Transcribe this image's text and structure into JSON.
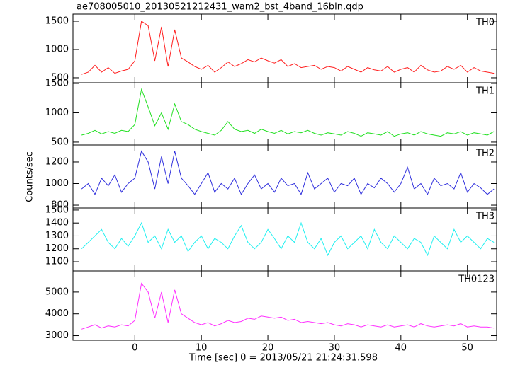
{
  "title": "ae708005010_20130521212431_wam2_bst_4band_16bin.qdp",
  "y_label": "Counts/sec",
  "x_label": "Time [sec] 0 = 2013/05/21 21:24:31.598",
  "chart_data": [
    {
      "type": "line",
      "xlim": [
        -9.3,
        54.4
      ],
      "xticks": [
        0,
        10,
        20,
        30,
        40,
        50
      ],
      "ylim": [
        412,
        1625
      ],
      "yticks": [
        500,
        1000,
        1500
      ],
      "x": [
        -8,
        -7,
        -6,
        -5,
        -4,
        -3,
        -2,
        -1,
        0,
        1,
        2,
        3,
        4,
        5,
        6,
        7,
        8,
        9,
        10,
        11,
        12,
        13,
        14,
        15,
        16,
        17,
        18,
        19,
        20,
        21,
        22,
        23,
        24,
        25,
        26,
        27,
        28,
        29,
        30,
        31,
        32,
        33,
        34,
        35,
        36,
        37,
        38,
        39,
        40,
        41,
        42,
        43,
        44,
        45,
        46,
        47,
        48,
        49,
        50,
        51,
        52,
        53,
        54
      ],
      "series": [
        {
          "name": "TH0",
          "color": "#ff2020",
          "values": [
            560,
            600,
            720,
            600,
            680,
            580,
            620,
            650,
            800,
            1500,
            1420,
            800,
            1400,
            700,
            1350,
            850,
            780,
            700,
            650,
            720,
            600,
            680,
            780,
            700,
            750,
            820,
            780,
            850,
            800,
            760,
            820,
            700,
            750,
            680,
            700,
            720,
            650,
            700,
            680,
            620,
            700,
            650,
            600,
            680,
            640,
            620,
            700,
            600,
            650,
            680,
            600,
            720,
            640,
            600,
            620,
            700,
            650,
            720,
            600,
            680,
            620,
            600,
            580
          ]
        }
      ]
    },
    {
      "type": "line",
      "xlim": [
        -9.3,
        54.4
      ],
      "xticks": [
        0,
        10,
        20,
        30,
        40,
        50
      ],
      "ylim": [
        451,
        1512
      ],
      "yticks": [
        500,
        1000,
        1500
      ],
      "x": [
        -8,
        -7,
        -6,
        -5,
        -4,
        -3,
        -2,
        -1,
        0,
        1,
        2,
        3,
        4,
        5,
        6,
        7,
        8,
        9,
        10,
        11,
        12,
        13,
        14,
        15,
        16,
        17,
        18,
        19,
        20,
        21,
        22,
        23,
        24,
        25,
        26,
        27,
        28,
        29,
        30,
        31,
        32,
        33,
        34,
        35,
        36,
        37,
        38,
        39,
        40,
        41,
        42,
        43,
        44,
        45,
        46,
        47,
        48,
        49,
        50,
        51,
        52,
        53,
        54
      ],
      "series": [
        {
          "name": "TH1",
          "color": "#22e022",
          "values": [
            620,
            650,
            700,
            640,
            680,
            650,
            700,
            680,
            800,
            1400,
            1100,
            780,
            1000,
            720,
            1150,
            850,
            800,
            720,
            680,
            650,
            620,
            700,
            850,
            720,
            680,
            700,
            650,
            720,
            680,
            650,
            700,
            640,
            680,
            660,
            700,
            650,
            620,
            660,
            640,
            620,
            680,
            650,
            600,
            660,
            640,
            620,
            680,
            600,
            640,
            660,
            620,
            680,
            640,
            620,
            600,
            660,
            640,
            680,
            620,
            660,
            640,
            620,
            680
          ]
        }
      ]
    },
    {
      "type": "line",
      "xlim": [
        -9.3,
        54.4
      ],
      "xticks": [
        0,
        10,
        20,
        30,
        40,
        50
      ],
      "ylim": [
        774,
        1357
      ],
      "yticks": [
        800,
        1000,
        1200
      ],
      "x": [
        -8,
        -7,
        -6,
        -5,
        -4,
        -3,
        -2,
        -1,
        0,
        1,
        2,
        3,
        4,
        5,
        6,
        7,
        8,
        9,
        10,
        11,
        12,
        13,
        14,
        15,
        16,
        17,
        18,
        19,
        20,
        21,
        22,
        23,
        24,
        25,
        26,
        27,
        28,
        29,
        30,
        31,
        32,
        33,
        34,
        35,
        36,
        37,
        38,
        39,
        40,
        41,
        42,
        43,
        44,
        45,
        46,
        47,
        48,
        49,
        50,
        51,
        52,
        53,
        54
      ],
      "series": [
        {
          "name": "TH2",
          "color": "#3030dd",
          "values": [
            950,
            1000,
            900,
            1050,
            980,
            1080,
            920,
            1000,
            1050,
            1300,
            1200,
            950,
            1250,
            1000,
            1300,
            1050,
            980,
            900,
            1000,
            1100,
            920,
            1000,
            950,
            1050,
            900,
            1000,
            1080,
            950,
            1000,
            920,
            1050,
            980,
            1000,
            900,
            1100,
            950,
            1000,
            1050,
            920,
            1000,
            980,
            1050,
            900,
            1000,
            960,
            1050,
            1000,
            920,
            1000,
            1150,
            950,
            1000,
            900,
            1050,
            980,
            1000,
            950,
            1100,
            920,
            1000,
            960,
            900,
            950
          ]
        }
      ]
    },
    {
      "type": "line",
      "xlim": [
        -9.3,
        54.4
      ],
      "xticks": [
        0,
        10,
        20,
        30,
        40,
        50
      ],
      "ylim": [
        1029,
        1516
      ],
      "yticks": [
        1100,
        1200,
        1300,
        1400,
        1500
      ],
      "x": [
        -8,
        -7,
        -6,
        -5,
        -4,
        -3,
        -2,
        -1,
        0,
        1,
        2,
        3,
        4,
        5,
        6,
        7,
        8,
        9,
        10,
        11,
        12,
        13,
        14,
        15,
        16,
        17,
        18,
        19,
        20,
        21,
        22,
        23,
        24,
        25,
        26,
        27,
        28,
        29,
        30,
        31,
        32,
        33,
        34,
        35,
        36,
        37,
        38,
        39,
        40,
        41,
        42,
        43,
        44,
        45,
        46,
        47,
        48,
        49,
        50,
        51,
        52,
        53,
        54
      ],
      "series": [
        {
          "name": "TH3",
          "color": "#20f0f0",
          "values": [
            1200,
            1250,
            1300,
            1350,
            1250,
            1200,
            1280,
            1220,
            1300,
            1400,
            1250,
            1300,
            1200,
            1350,
            1250,
            1300,
            1180,
            1250,
            1300,
            1200,
            1280,
            1250,
            1200,
            1300,
            1380,
            1250,
            1200,
            1250,
            1350,
            1280,
            1200,
            1300,
            1250,
            1400,
            1250,
            1200,
            1280,
            1150,
            1250,
            1300,
            1200,
            1250,
            1300,
            1200,
            1350,
            1250,
            1200,
            1300,
            1250,
            1200,
            1280,
            1250,
            1150,
            1300,
            1250,
            1200,
            1350,
            1250,
            1300,
            1250,
            1200,
            1280,
            1250
          ]
        }
      ]
    },
    {
      "type": "line",
      "xlim": [
        -9.3,
        54.4
      ],
      "xticks": [
        0,
        10,
        20,
        30,
        40,
        50
      ],
      "ylim": [
        2790,
        5970
      ],
      "yticks": [
        3000,
        4000,
        5000
      ],
      "x": [
        -8,
        -7,
        -6,
        -5,
        -4,
        -3,
        -2,
        -1,
        0,
        1,
        2,
        3,
        4,
        5,
        6,
        7,
        8,
        9,
        10,
        11,
        12,
        13,
        14,
        15,
        16,
        17,
        18,
        19,
        20,
        21,
        22,
        23,
        24,
        25,
        26,
        27,
        28,
        29,
        30,
        31,
        32,
        33,
        34,
        35,
        36,
        37,
        38,
        39,
        40,
        41,
        42,
        43,
        44,
        45,
        46,
        47,
        48,
        49,
        50,
        51,
        52,
        53,
        54
      ],
      "series": [
        {
          "name": "TH0123",
          "color": "#ff30ff",
          "values": [
            3300,
            3400,
            3500,
            3350,
            3450,
            3400,
            3500,
            3450,
            3700,
            5400,
            5000,
            3800,
            5000,
            3600,
            5100,
            4000,
            3800,
            3600,
            3500,
            3600,
            3450,
            3550,
            3700,
            3600,
            3650,
            3800,
            3750,
            3900,
            3850,
            3800,
            3850,
            3700,
            3750,
            3600,
            3650,
            3600,
            3550,
            3600,
            3500,
            3450,
            3550,
            3500,
            3400,
            3500,
            3450,
            3400,
            3500,
            3400,
            3450,
            3500,
            3400,
            3550,
            3450,
            3400,
            3450,
            3500,
            3450,
            3550,
            3400,
            3450,
            3400,
            3400,
            3350
          ]
        }
      ]
    }
  ]
}
